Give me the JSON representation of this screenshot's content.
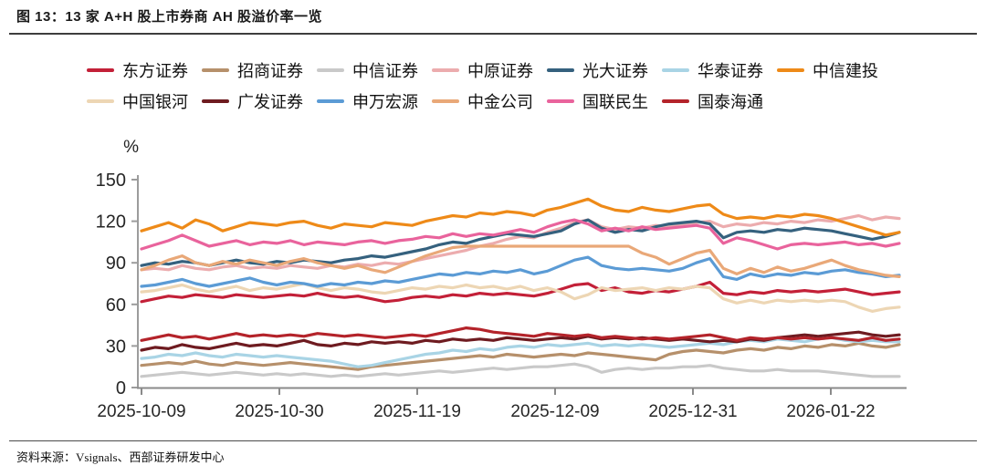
{
  "page": {
    "title": "图 13：13 家 A+H 股上市券商 AH 股溢价率一览",
    "source_note": "资料来源：Vsignals、西部证券研发中心"
  },
  "chart_data": {
    "type": "line",
    "title": "13 家 A+H 股上市券商 AH 股溢价率一览",
    "ylabel": "%",
    "ylim": [
      0,
      150
    ],
    "yticks": [
      0,
      30,
      60,
      90,
      120,
      150
    ],
    "xticklabels": [
      "2025-10-09",
      "2025-10-30",
      "2025-11-19",
      "2025-12-09",
      "2025-12-31",
      "2026-01-22"
    ],
    "grid": false,
    "legend_position": "top",
    "legend_rows": [
      7,
      6
    ],
    "series": [
      {
        "name": "东方证券",
        "color": "#C32038",
        "values": [
          62,
          64,
          66,
          65,
          67,
          66,
          65,
          67,
          66,
          65,
          66,
          67,
          66,
          68,
          66,
          65,
          66,
          64,
          62,
          63,
          65,
          66,
          65,
          67,
          66,
          68,
          67,
          68,
          67,
          66,
          68,
          71,
          74,
          75,
          70,
          72,
          69,
          68,
          70,
          69,
          71,
          73,
          76,
          68,
          67,
          69,
          68,
          70,
          69,
          70,
          69,
          70,
          71,
          69,
          67,
          68,
          69
        ]
      },
      {
        "name": "招商证券",
        "color": "#B6906B",
        "values": [
          16,
          17,
          18,
          17,
          19,
          17,
          16,
          18,
          17,
          16,
          17,
          18,
          17,
          16,
          15,
          14,
          13,
          15,
          16,
          17,
          18,
          19,
          20,
          21,
          22,
          23,
          22,
          24,
          23,
          22,
          23,
          24,
          23,
          25,
          24,
          23,
          22,
          21,
          20,
          24,
          26,
          27,
          26,
          25,
          27,
          28,
          27,
          29,
          28,
          30,
          29,
          31,
          30,
          32,
          30,
          29,
          31
        ]
      },
      {
        "name": "中信证券",
        "color": "#C9C9C9",
        "values": [
          8,
          9,
          10,
          11,
          10,
          9,
          10,
          11,
          10,
          9,
          10,
          9,
          10,
          9,
          8,
          9,
          8,
          9,
          10,
          9,
          10,
          11,
          12,
          11,
          12,
          13,
          14,
          13,
          14,
          15,
          15,
          16,
          17,
          15,
          11,
          13,
          14,
          13,
          14,
          14,
          15,
          15,
          16,
          14,
          13,
          12,
          12,
          13,
          12,
          12,
          12,
          11,
          10,
          9,
          8,
          8,
          8
        ]
      },
      {
        "name": "中原证券",
        "color": "#ECACAE",
        "values": [
          85,
          86,
          85,
          88,
          86,
          85,
          87,
          88,
          86,
          87,
          86,
          88,
          87,
          86,
          88,
          87,
          89,
          88,
          90,
          89,
          91,
          93,
          95,
          97,
          99,
          102,
          104,
          107,
          109,
          108,
          112,
          115,
          119,
          121,
          116,
          114,
          116,
          115,
          117,
          116,
          118,
          119,
          120,
          116,
          118,
          117,
          119,
          118,
          120,
          119,
          121,
          120,
          122,
          124,
          121,
          123,
          122
        ]
      },
      {
        "name": "光大证券",
        "color": "#35617E",
        "values": [
          88,
          90,
          89,
          91,
          90,
          88,
          90,
          92,
          90,
          89,
          91,
          90,
          92,
          91,
          90,
          92,
          93,
          95,
          94,
          96,
          98,
          100,
          103,
          105,
          104,
          107,
          109,
          111,
          110,
          109,
          111,
          113,
          118,
          121,
          115,
          112,
          114,
          113,
          116,
          118,
          119,
          120,
          118,
          108,
          112,
          113,
          112,
          114,
          113,
          115,
          114,
          113,
          111,
          109,
          107,
          109,
          112
        ]
      },
      {
        "name": "华泰证券",
        "color": "#A9D4E5",
        "values": [
          21,
          22,
          24,
          23,
          25,
          23,
          22,
          24,
          23,
          22,
          23,
          22,
          21,
          20,
          19,
          17,
          15,
          16,
          18,
          20,
          22,
          24,
          25,
          27,
          26,
          28,
          27,
          29,
          30,
          29,
          31,
          30,
          31,
          32,
          30,
          31,
          30,
          31,
          30,
          29,
          30,
          31,
          32,
          31,
          33,
          34,
          33,
          35,
          34,
          33,
          35,
          36,
          34,
          33,
          34,
          33,
          33
        ]
      },
      {
        "name": "中信建投",
        "color": "#EE8A18",
        "values": [
          113,
          116,
          119,
          115,
          121,
          118,
          113,
          116,
          119,
          118,
          117,
          119,
          120,
          117,
          115,
          118,
          117,
          116,
          119,
          118,
          117,
          120,
          122,
          124,
          123,
          126,
          125,
          127,
          126,
          124,
          128,
          130,
          133,
          136,
          131,
          128,
          127,
          130,
          128,
          127,
          129,
          131,
          132,
          125,
          122,
          123,
          122,
          124,
          123,
          125,
          124,
          122,
          119,
          116,
          113,
          110,
          112
        ]
      },
      {
        "name": "中国银河",
        "color": "#EDD6B4",
        "values": [
          69,
          70,
          72,
          74,
          71,
          69,
          71,
          73,
          70,
          72,
          71,
          73,
          75,
          72,
          70,
          72,
          71,
          69,
          68,
          70,
          72,
          71,
          73,
          72,
          74,
          72,
          73,
          71,
          73,
          70,
          72,
          69,
          64,
          67,
          72,
          70,
          71,
          72,
          70,
          72,
          71,
          73,
          72,
          64,
          61,
          63,
          61,
          63,
          62,
          63,
          62,
          63,
          62,
          58,
          55,
          57,
          58
        ]
      },
      {
        "name": "广发证券",
        "color": "#6E1B20",
        "values": [
          27,
          29,
          28,
          31,
          29,
          28,
          30,
          32,
          30,
          31,
          30,
          32,
          34,
          31,
          30,
          32,
          31,
          33,
          32,
          33,
          32,
          34,
          33,
          35,
          34,
          35,
          34,
          36,
          35,
          34,
          35,
          36,
          35,
          37,
          35,
          36,
          35,
          36,
          35,
          34,
          35,
          34,
          33,
          34,
          33,
          35,
          34,
          36,
          37,
          38,
          37,
          38,
          39,
          40,
          38,
          37,
          38
        ]
      },
      {
        "name": "申万宏源",
        "color": "#5B9BD5",
        "values": [
          73,
          74,
          76,
          78,
          75,
          73,
          75,
          77,
          79,
          76,
          74,
          76,
          75,
          73,
          75,
          74,
          76,
          75,
          77,
          76,
          78,
          80,
          82,
          81,
          83,
          82,
          84,
          83,
          85,
          82,
          84,
          88,
          92,
          94,
          88,
          86,
          85,
          86,
          85,
          84,
          86,
          90,
          93,
          80,
          78,
          82,
          80,
          82,
          81,
          83,
          82,
          84,
          85,
          83,
          82,
          80,
          81
        ]
      },
      {
        "name": "中金公司",
        "color": "#E9A878",
        "values": [
          85,
          88,
          92,
          95,
          90,
          88,
          91,
          89,
          92,
          90,
          88,
          91,
          93,
          90,
          88,
          86,
          88,
          85,
          83,
          87,
          91,
          95,
          98,
          101,
          102,
          102,
          102,
          102,
          102,
          102,
          102,
          102,
          102,
          102,
          102,
          102,
          102,
          97,
          94,
          89,
          93,
          97,
          99,
          86,
          82,
          86,
          83,
          87,
          84,
          86,
          89,
          92,
          88,
          85,
          83,
          81,
          80
        ]
      },
      {
        "name": "国联民生",
        "color": "#E9639C",
        "values": [
          100,
          103,
          106,
          110,
          106,
          102,
          104,
          106,
          103,
          105,
          104,
          106,
          103,
          105,
          104,
          103,
          105,
          106,
          104,
          106,
          107,
          109,
          108,
          111,
          109,
          111,
          110,
          112,
          114,
          112,
          116,
          119,
          121,
          118,
          113,
          115,
          113,
          116,
          114,
          115,
          116,
          117,
          115,
          104,
          108,
          106,
          103,
          100,
          103,
          104,
          103,
          104,
          105,
          103,
          104,
          102,
          104
        ]
      },
      {
        "name": "国泰海通",
        "color": "#B4232A",
        "values": [
          34,
          36,
          38,
          36,
          37,
          35,
          37,
          39,
          37,
          38,
          37,
          38,
          37,
          39,
          38,
          37,
          38,
          37,
          36,
          37,
          38,
          37,
          39,
          41,
          43,
          42,
          40,
          39,
          38,
          37,
          39,
          38,
          37,
          38,
          36,
          37,
          36,
          35,
          36,
          35,
          36,
          37,
          38,
          36,
          34,
          36,
          35,
          36,
          35,
          36,
          35,
          36,
          35,
          34,
          36,
          34,
          35
        ]
      }
    ]
  }
}
